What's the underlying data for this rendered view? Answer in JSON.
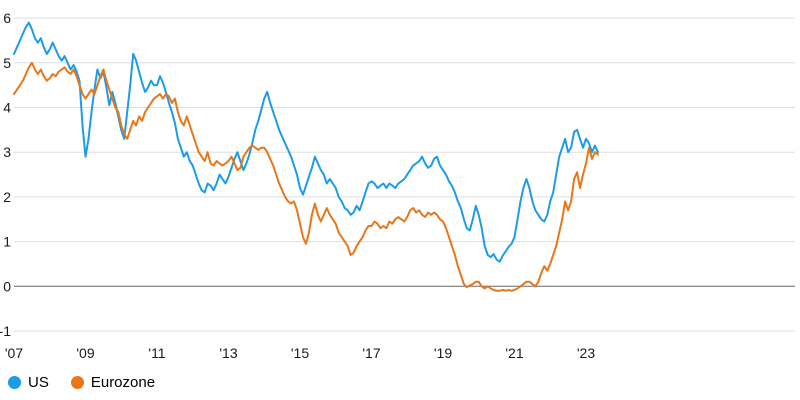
{
  "chart_data": {
    "type": "line",
    "title": "",
    "xlabel": "",
    "ylabel": "",
    "x_start_year": 2007,
    "x_step_years": 0.0833333,
    "ylim": [
      -1,
      6
    ],
    "yticks": [
      6,
      5,
      4,
      3,
      2,
      1,
      0,
      -1
    ],
    "xticks": [
      {
        "year": 2007,
        "label": "'07"
      },
      {
        "year": 2009,
        "label": "'09"
      },
      {
        "year": 2011,
        "label": "'11"
      },
      {
        "year": 2013,
        "label": "'13"
      },
      {
        "year": 2015,
        "label": "'15"
      },
      {
        "year": 2017,
        "label": "'17"
      },
      {
        "year": 2019,
        "label": "'19"
      },
      {
        "year": 2021,
        "label": "'21"
      },
      {
        "year": 2023,
        "label": "'23"
      }
    ],
    "grid": "horizontal",
    "zero_line": true,
    "legend_position": "bottom-left",
    "colors": {
      "grid": "#dddddd",
      "zero_line": "#666666",
      "axis_text": "#1a1a1a"
    },
    "series": [
      {
        "name": "US",
        "color": "#1e9be5",
        "values": [
          5.2,
          5.35,
          5.5,
          5.65,
          5.8,
          5.9,
          5.75,
          5.55,
          5.45,
          5.55,
          5.35,
          5.2,
          5.3,
          5.45,
          5.3,
          5.15,
          5.05,
          5.15,
          5.0,
          4.85,
          4.95,
          4.8,
          4.6,
          3.6,
          2.9,
          3.3,
          3.9,
          4.4,
          4.85,
          4.65,
          4.8,
          4.45,
          4.05,
          4.35,
          4.1,
          3.8,
          3.5,
          3.3,
          3.9,
          4.5,
          5.2,
          5.05,
          4.8,
          4.55,
          4.35,
          4.45,
          4.6,
          4.5,
          4.5,
          4.7,
          4.55,
          4.35,
          4.1,
          3.9,
          3.65,
          3.3,
          3.1,
          2.9,
          3.0,
          2.8,
          2.7,
          2.5,
          2.3,
          2.15,
          2.1,
          2.3,
          2.25,
          2.15,
          2.3,
          2.5,
          2.4,
          2.3,
          2.45,
          2.65,
          2.85,
          3.0,
          2.8,
          2.6,
          2.75,
          2.95,
          3.2,
          3.5,
          3.7,
          3.95,
          4.2,
          4.35,
          4.1,
          3.9,
          3.7,
          3.5,
          3.35,
          3.2,
          3.05,
          2.9,
          2.7,
          2.5,
          2.2,
          2.05,
          2.25,
          2.45,
          2.65,
          2.9,
          2.75,
          2.6,
          2.5,
          2.3,
          2.4,
          2.3,
          2.2,
          2.0,
          1.9,
          1.75,
          1.7,
          1.6,
          1.65,
          1.8,
          1.7,
          1.9,
          2.1,
          2.3,
          2.35,
          2.3,
          2.2,
          2.25,
          2.3,
          2.2,
          2.3,
          2.25,
          2.2,
          2.3,
          2.35,
          2.4,
          2.5,
          2.6,
          2.7,
          2.75,
          2.8,
          2.9,
          2.75,
          2.65,
          2.7,
          2.85,
          2.9,
          2.7,
          2.6,
          2.5,
          2.35,
          2.25,
          2.1,
          1.9,
          1.75,
          1.5,
          1.3,
          1.25,
          1.5,
          1.8,
          1.6,
          1.3,
          0.9,
          0.7,
          0.65,
          0.72,
          0.6,
          0.55,
          0.68,
          0.78,
          0.88,
          0.95,
          1.1,
          1.5,
          1.9,
          2.2,
          2.4,
          2.2,
          1.9,
          1.7,
          1.6,
          1.5,
          1.45,
          1.6,
          1.9,
          2.1,
          2.5,
          2.9,
          3.1,
          3.3,
          3.0,
          3.1,
          3.45,
          3.5,
          3.3,
          3.1,
          3.3,
          3.2,
          3.0,
          3.15,
          3.0
        ]
      },
      {
        "name": "Eurozone",
        "color": "#e8761b",
        "values": [
          4.3,
          4.4,
          4.5,
          4.6,
          4.75,
          4.9,
          5.0,
          4.85,
          4.75,
          4.85,
          4.7,
          4.6,
          4.65,
          4.75,
          4.7,
          4.8,
          4.85,
          4.9,
          4.8,
          4.75,
          4.85,
          4.7,
          4.5,
          4.3,
          4.2,
          4.3,
          4.4,
          4.3,
          4.5,
          4.7,
          4.85,
          4.6,
          4.4,
          4.2,
          4.0,
          3.9,
          3.6,
          3.4,
          3.3,
          3.5,
          3.7,
          3.6,
          3.8,
          3.7,
          3.9,
          4.0,
          4.1,
          4.2,
          4.25,
          4.3,
          4.2,
          4.3,
          4.25,
          4.1,
          4.2,
          3.9,
          3.7,
          3.6,
          3.8,
          3.6,
          3.4,
          3.2,
          3.0,
          2.9,
          2.8,
          3.0,
          2.75,
          2.7,
          2.8,
          2.75,
          2.7,
          2.75,
          2.8,
          2.9,
          2.75,
          2.6,
          2.65,
          2.9,
          3.0,
          3.1,
          3.15,
          3.1,
          3.05,
          3.1,
          3.1,
          3.0,
          2.85,
          2.7,
          2.5,
          2.3,
          2.15,
          2.0,
          1.9,
          1.85,
          1.9,
          1.7,
          1.4,
          1.1,
          0.95,
          1.2,
          1.6,
          1.85,
          1.6,
          1.45,
          1.6,
          1.75,
          1.6,
          1.5,
          1.4,
          1.2,
          1.1,
          1.0,
          0.9,
          0.7,
          0.75,
          0.9,
          1.0,
          1.1,
          1.25,
          1.35,
          1.35,
          1.45,
          1.4,
          1.3,
          1.35,
          1.3,
          1.45,
          1.4,
          1.5,
          1.55,
          1.5,
          1.45,
          1.55,
          1.7,
          1.75,
          1.65,
          1.7,
          1.6,
          1.55,
          1.65,
          1.6,
          1.65,
          1.6,
          1.5,
          1.45,
          1.3,
          1.1,
          0.9,
          0.7,
          0.45,
          0.25,
          0.05,
          -0.02,
          0.02,
          0.05,
          0.1,
          0.1,
          0.0,
          -0.05,
          0.0,
          -0.05,
          -0.08,
          -0.1,
          -0.1,
          -0.08,
          -0.1,
          -0.08,
          -0.1,
          -0.08,
          -0.05,
          0.0,
          0.05,
          0.1,
          0.1,
          0.05,
          0.0,
          0.1,
          0.3,
          0.45,
          0.35,
          0.5,
          0.7,
          0.9,
          1.2,
          1.5,
          1.9,
          1.7,
          1.9,
          2.4,
          2.55,
          2.2,
          2.5,
          2.75,
          3.1,
          2.85,
          3.0,
          2.95
        ]
      }
    ]
  }
}
